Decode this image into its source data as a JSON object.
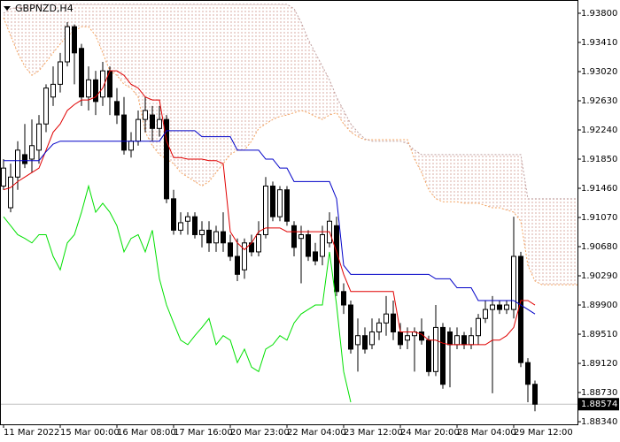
{
  "chart_data": {
    "type": "candlestick",
    "title": "GBPNZD,H4",
    "categories": [
      "11 Mar 2022",
      null,
      null,
      null,
      null,
      null,
      null,
      null,
      "15 Mar 00:00",
      null,
      null,
      null,
      null,
      null,
      null,
      null,
      "16 Mar 08:00",
      null,
      null,
      null,
      null,
      null,
      null,
      null,
      "17 Mar 16:00",
      null,
      null,
      null,
      null,
      null,
      null,
      null,
      "20 Mar 23:00",
      null,
      null,
      null,
      null,
      null,
      null,
      null,
      "22 Mar 04:00",
      null,
      null,
      null,
      null,
      null,
      null,
      null,
      "23 Mar 12:00",
      null,
      null,
      null,
      null,
      null,
      null,
      null,
      "24 Mar 20:00",
      null,
      null,
      null,
      null,
      null,
      null,
      null,
      "28 Mar 04:00",
      null,
      null,
      null,
      null,
      null,
      null,
      null,
      "29 Mar 12:00",
      null,
      null,
      null,
      null,
      null,
      null,
      null,
      null,
      null
    ],
    "open": [
      1.9149,
      1.912,
      1.9161,
      1.9191,
      1.9185,
      1.9197,
      1.9232,
      1.9268,
      1.9285,
      1.9315,
      1.9362,
      1.9333,
      1.9268,
      1.9291,
      1.9268,
      1.9303,
      1.9262,
      1.9244,
      1.9197,
      1.9209,
      1.9238,
      1.9244,
      1.9226,
      1.9238,
      1.9132,
      1.909,
      1.9102,
      1.9108,
      1.9084,
      1.909,
      1.9073,
      1.9088,
      1.9073,
      1.9055,
      1.9037,
      1.9073,
      1.9061,
      1.9084,
      1.9149,
      1.9108,
      1.9144,
      1.9096,
      1.9079,
      1.9084,
      1.9061,
      1.9055,
      1.9073,
      1.9096,
      1.9008,
      1.899,
      1.8937,
      1.8949,
      1.8937,
      1.8954,
      1.8966,
      1.8978,
      1.8954,
      1.8943,
      1.8949,
      1.8954,
      1.8943,
      1.8901,
      1.896,
      1.8954,
      1.8937,
      1.8949,
      1.8937,
      1.8949,
      1.8972,
      1.8984,
      1.899,
      1.8984,
      1.8984,
      1.9055,
      1.8913,
      1.8884,
      null,
      null,
      null,
      null,
      null,
      null
    ],
    "high": [
      1.9185,
      1.9179,
      1.9209,
      1.9232,
      1.9238,
      1.9244,
      1.9285,
      1.9309,
      1.9327,
      1.9368,
      1.9365,
      1.9339,
      1.9309,
      1.9303,
      1.9315,
      1.9309,
      1.928,
      1.9268,
      1.9221,
      1.925,
      1.9268,
      1.9256,
      1.9256,
      1.9244,
      1.9144,
      1.9114,
      1.9114,
      1.9114,
      1.9102,
      1.9102,
      1.9096,
      1.9114,
      1.9084,
      1.9079,
      1.9079,
      1.9084,
      1.9102,
      1.9161,
      1.9155,
      1.9149,
      1.9149,
      1.9102,
      1.9096,
      1.909,
      1.9073,
      1.9096,
      1.9114,
      1.9108,
      1.9019,
      1.8996,
      1.8972,
      1.896,
      1.8972,
      1.8972,
      1.9002,
      1.8996,
      1.8966,
      1.896,
      1.896,
      1.8972,
      1.8949,
      1.899,
      1.8966,
      1.896,
      1.896,
      1.8954,
      1.896,
      1.8978,
      1.8996,
      1.9002,
      1.8996,
      1.8996,
      1.9108,
      1.9061,
      1.8919,
      1.8889,
      null,
      null,
      null,
      null,
      null,
      null
    ],
    "low": [
      1.9144,
      1.9114,
      1.9144,
      1.9173,
      1.9167,
      1.9179,
      1.9221,
      1.9256,
      1.9274,
      1.9309,
      1.9285,
      1.9256,
      1.925,
      1.9244,
      1.9256,
      1.9244,
      1.9232,
      1.9191,
      1.9187,
      1.9203,
      1.9221,
      1.9209,
      1.9215,
      1.9126,
      1.9084,
      1.9084,
      1.9084,
      1.9079,
      1.9067,
      1.9061,
      1.9061,
      1.9061,
      1.9049,
      1.9022,
      1.9025,
      1.9055,
      1.9055,
      1.9079,
      1.9102,
      1.9102,
      1.9096,
      1.9055,
      1.9019,
      1.9049,
      1.9043,
      1.9043,
      1.9067,
      1.9002,
      1.8978,
      1.8925,
      1.8901,
      1.8925,
      1.8931,
      1.8943,
      1.8949,
      1.8943,
      1.8931,
      1.8931,
      1.8901,
      1.8937,
      1.8895,
      1.8895,
      1.8878,
      1.888,
      1.8931,
      1.8931,
      1.8931,
      1.8937,
      1.8966,
      1.8872,
      1.8978,
      1.8978,
      1.8972,
      1.8907,
      1.886,
      1.8848,
      null,
      null,
      null,
      null,
      null,
      null
    ],
    "close": [
      1.9173,
      1.9161,
      1.9197,
      1.9179,
      1.9203,
      1.9232,
      1.928,
      1.9285,
      1.9315,
      1.9362,
      1.9327,
      1.9268,
      1.9291,
      1.9262,
      1.9303,
      1.9268,
      1.9244,
      1.9197,
      1.9209,
      1.9238,
      1.925,
      1.9226,
      1.9238,
      1.9132,
      1.909,
      1.91,
      1.9108,
      1.9084,
      1.909,
      1.9073,
      1.9088,
      1.9073,
      1.9055,
      1.9031,
      1.9073,
      1.9061,
      1.9084,
      1.9149,
      1.9108,
      1.9144,
      1.9102,
      1.9067,
      1.9084,
      1.9055,
      1.9049,
      1.9084,
      1.9102,
      1.9008,
      1.899,
      1.8931,
      1.8949,
      1.8931,
      1.8954,
      1.8966,
      1.8978,
      1.8954,
      1.8937,
      1.8949,
      1.8954,
      1.8943,
      1.8901,
      1.896,
      1.8884,
      1.8937,
      1.8949,
      1.8937,
      1.8949,
      1.8972,
      1.8984,
      1.899,
      1.8984,
      1.899,
      1.9055,
      1.8913,
      1.8884,
      1.88574,
      null,
      null,
      null,
      null,
      null,
      null
    ],
    "up_color": "#ffffff",
    "down_color": "#000000",
    "edge_color": "#000000",
    "lines": [
      {
        "color": "#e00000",
        "values": [
          1.9144,
          1.9147,
          1.9155,
          1.9161,
          1.9167,
          1.9173,
          1.9197,
          1.9221,
          1.9232,
          1.925,
          1.9258,
          1.9264,
          1.9264,
          1.9268,
          1.928,
          1.9303,
          1.9303,
          1.9297,
          1.9285,
          1.928,
          1.9268,
          1.9264,
          1.9264,
          1.9209,
          1.9187,
          1.9187,
          1.9185,
          1.9185,
          1.9185,
          1.9183,
          1.9183,
          1.9179,
          1.9088,
          1.9073,
          1.9064,
          1.9073,
          1.9088,
          1.9093,
          1.9093,
          1.9093,
          1.9088,
          1.9088,
          1.9088,
          1.9088,
          1.9088,
          1.9088,
          1.9088,
          1.9061,
          1.9031,
          1.9008,
          1.9008,
          1.9008,
          1.9008,
          1.9008,
          1.9008,
          1.9008,
          1.8954,
          1.8954,
          1.8954,
          1.8951,
          1.8943,
          1.8943,
          1.8939,
          1.8937,
          1.8937,
          1.8937,
          1.8937,
          1.8937,
          1.8937,
          1.8943,
          1.8943,
          1.8949,
          1.896,
          1.8996,
          1.8996,
          1.899,
          null,
          null,
          null,
          null,
          null,
          null
        ]
      },
      {
        "color": "#0000c8",
        "values": [
          1.9183,
          1.9183,
          1.9183,
          1.9183,
          1.9183,
          1.9183,
          1.9195,
          1.9205,
          1.9209,
          1.9209,
          1.9209,
          1.9209,
          1.9209,
          1.9209,
          1.9209,
          1.9209,
          1.9209,
          1.9209,
          1.9209,
          1.9209,
          1.9209,
          1.9209,
          1.9209,
          1.9223,
          1.9223,
          1.9223,
          1.9223,
          1.9223,
          1.9215,
          1.9215,
          1.9215,
          1.9215,
          1.9215,
          1.9197,
          1.9197,
          1.9197,
          1.9197,
          1.9185,
          1.9185,
          1.9173,
          1.9173,
          1.9155,
          1.9155,
          1.9155,
          1.9155,
          1.9155,
          1.9155,
          1.9132,
          1.9043,
          1.9031,
          1.9031,
          1.9031,
          1.9031,
          1.9031,
          1.9031,
          1.9031,
          1.9031,
          1.9031,
          1.9031,
          1.9031,
          1.9031,
          1.9025,
          1.9025,
          1.9025,
          1.9013,
          1.9013,
          1.9013,
          1.8996,
          1.8996,
          1.8996,
          1.8996,
          1.8996,
          1.8996,
          1.899,
          1.8984,
          1.8978,
          null,
          null,
          null,
          null,
          null,
          null
        ]
      },
      {
        "color": "#00e000",
        "values": [
          1.9108,
          1.9096,
          1.9084,
          1.9079,
          1.9073,
          1.9084,
          1.9084,
          1.9055,
          1.9037,
          1.9073,
          1.9084,
          1.9114,
          1.9149,
          1.9114,
          1.9126,
          1.9114,
          1.9096,
          1.9061,
          1.9079,
          1.9084,
          1.9061,
          1.909,
          1.9025,
          1.899,
          1.8966,
          1.8943,
          1.8937,
          1.8949,
          1.896,
          1.8972,
          1.8937,
          1.8949,
          1.8943,
          1.8913,
          1.8931,
          1.8907,
          1.8901,
          1.8931,
          1.8937,
          1.8949,
          1.8943,
          1.8966,
          1.8978,
          1.8984,
          1.899,
          1.899,
          1.9061,
          1.899,
          1.8901,
          1.886,
          null,
          null,
          null,
          null,
          null,
          null,
          null,
          null,
          null,
          null,
          null,
          null,
          null,
          null,
          null,
          null,
          null,
          null,
          null,
          null,
          null,
          null,
          null,
          null,
          null,
          null,
          null,
          null,
          null,
          null,
          null,
          null
        ]
      }
    ],
    "cloud": {
      "fill": "#d8aca4",
      "span_a": {
        "color": "#f4a460",
        "values": [
          1.9374,
          1.935,
          1.9327,
          1.9309,
          1.9297,
          1.9303,
          1.9315,
          1.9327,
          1.9339,
          1.935,
          1.9356,
          1.9362,
          1.9362,
          1.935,
          1.9327,
          1.9303,
          1.9297,
          1.9285,
          1.928,
          1.9268,
          1.9221,
          1.9203,
          1.9191,
          1.9185,
          1.9179,
          1.9167,
          1.9161,
          1.9155,
          1.9149,
          1.9155,
          1.9167,
          1.9179,
          1.9191,
          1.9197,
          1.9197,
          1.9209,
          1.9226,
          1.9232,
          1.9238,
          1.9242,
          1.9244,
          1.9247,
          1.925,
          1.9247,
          1.9242,
          1.9238,
          1.9244,
          1.9247,
          1.9232,
          1.9221,
          1.9215,
          1.9211,
          1.9211,
          1.9211,
          1.9211,
          1.9211,
          1.9211,
          1.9211,
          1.9185,
          1.9167,
          1.9144,
          1.9132,
          1.9128,
          1.9128,
          1.9128,
          1.9126,
          1.9126,
          1.9126,
          1.9123,
          1.912,
          1.912,
          1.9117,
          1.9114,
          1.9102,
          1.9043,
          1.9022,
          1.9017,
          1.9017,
          1.9017,
          1.9017,
          1.9017,
          1.9017
        ]
      },
      "span_b": {
        "color": "#c0a0a0",
        "values": [
          1.938,
          1.9386,
          1.9388,
          1.9391,
          1.9392,
          1.9392,
          1.9392,
          1.9392,
          1.9392,
          1.9392,
          1.9392,
          1.9392,
          1.9392,
          1.9392,
          1.9392,
          1.9392,
          1.9392,
          1.9392,
          1.9392,
          1.9392,
          1.9392,
          1.9392,
          1.9392,
          1.9392,
          1.9392,
          1.9392,
          1.9392,
          1.9392,
          1.9392,
          1.9392,
          1.9392,
          1.9392,
          1.9392,
          1.9392,
          1.9392,
          1.9392,
          1.9392,
          1.9392,
          1.9392,
          1.9392,
          1.9392,
          1.9386,
          1.9368,
          1.9345,
          1.9327,
          1.9309,
          1.9291,
          1.9268,
          1.925,
          1.9232,
          1.9221,
          1.9212,
          1.9209,
          1.9209,
          1.9209,
          1.9209,
          1.9209,
          1.9206,
          1.9197,
          1.9191,
          1.9191,
          1.9191,
          1.9191,
          1.9191,
          1.9191,
          1.9191,
          1.9191,
          1.9191,
          1.9191,
          1.9191,
          1.9191,
          1.9191,
          1.9191,
          1.9191,
          1.9132,
          1.9132,
          1.9132,
          1.9132,
          1.9132,
          1.9132,
          1.9132,
          1.9132
        ]
      }
    },
    "last_price": 1.88574,
    "last_price_color": "#000000",
    "ylim": [
      1.88305,
      1.93977
    ],
    "yticks": [
      {
        "value": 1.938,
        "label": "1.93800"
      },
      {
        "value": 1.9341,
        "label": "1.93410"
      },
      {
        "value": 1.9302,
        "label": "1.93020"
      },
      {
        "value": 1.9263,
        "label": "1.92630"
      },
      {
        "value": 1.9224,
        "label": "1.92240"
      },
      {
        "value": 1.9185,
        "label": "1.91850"
      },
      {
        "value": 1.9146,
        "label": "1.91460"
      },
      {
        "value": 1.9107,
        "label": "1.91070"
      },
      {
        "value": 1.9068,
        "label": "1.90680"
      },
      {
        "value": 1.9029,
        "label": "1.90290"
      },
      {
        "value": 1.899,
        "label": "1.89900"
      },
      {
        "value": 1.8951,
        "label": "1.89510"
      },
      {
        "value": 1.8912,
        "label": "1.89120"
      },
      {
        "value": 1.8873,
        "label": "1.88730"
      },
      {
        "value": 1.8834,
        "label": "1.88340"
      }
    ],
    "grid": false
  }
}
